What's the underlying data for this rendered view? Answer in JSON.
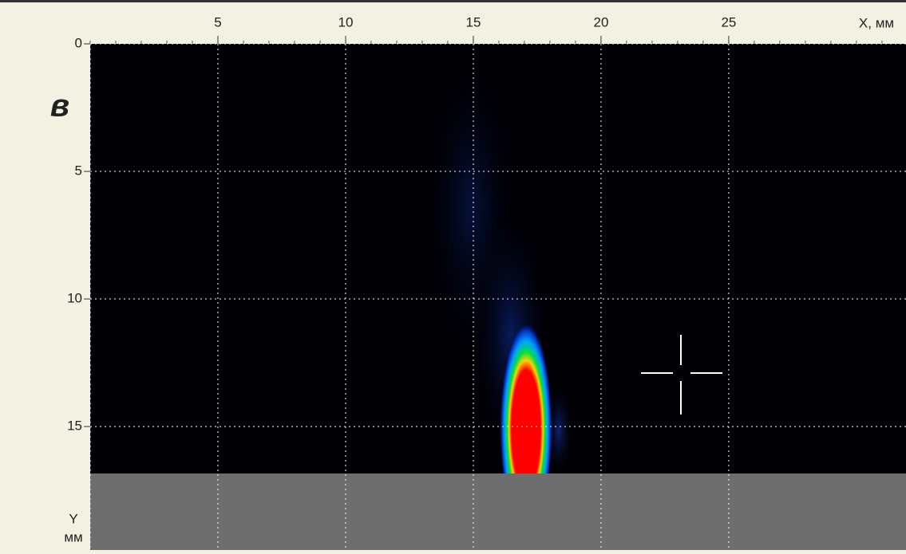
{
  "chart_data": {
    "type": "heatmap",
    "panel_label": "в",
    "x_label": "X, мм",
    "y_label_top": "Y",
    "y_label_bottom": "мм",
    "xlim": [
      0,
      31.94
    ],
    "xticks": [
      5,
      10,
      15,
      20,
      25
    ],
    "ylim": [
      0,
      19.84
    ],
    "yticks": [
      0,
      5,
      10,
      15
    ],
    "grid": true
  }
}
